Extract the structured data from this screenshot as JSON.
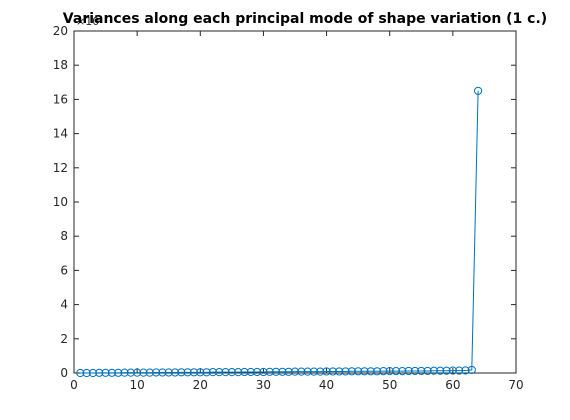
{
  "chart_data": {
    "type": "line",
    "title": "Variances along each principal mode of shape variation (1 c.)",
    "xlabel": "",
    "ylabel": "",
    "y_exponent_label": "×10",
    "xlim": [
      0,
      70
    ],
    "ylim": [
      0,
      20
    ],
    "xticks": [
      0,
      10,
      20,
      30,
      40,
      50,
      60,
      70
    ],
    "yticks": [
      0,
      2,
      4,
      6,
      8,
      10,
      12,
      14,
      16,
      18,
      20
    ],
    "grid": false,
    "colors": {
      "series": "#0072BD"
    },
    "series": [
      {
        "marker": "circle",
        "x": [
          1,
          2,
          3,
          4,
          5,
          6,
          7,
          8,
          9,
          10,
          11,
          12,
          13,
          14,
          15,
          16,
          17,
          18,
          19,
          20,
          21,
          22,
          23,
          24,
          25,
          26,
          27,
          28,
          29,
          30,
          31,
          32,
          33,
          34,
          35,
          36,
          37,
          38,
          39,
          40,
          41,
          42,
          43,
          44,
          45,
          46,
          47,
          48,
          49,
          50,
          51,
          52,
          53,
          54,
          55,
          56,
          57,
          58,
          59,
          60,
          61,
          62,
          63,
          64
        ],
        "values": [
          0,
          0,
          0,
          0.01,
          0.01,
          0.01,
          0.01,
          0.02,
          0.02,
          0.02,
          0.02,
          0.02,
          0.03,
          0.03,
          0.03,
          0.03,
          0.04,
          0.04,
          0.04,
          0.04,
          0.04,
          0.05,
          0.05,
          0.05,
          0.05,
          0.05,
          0.06,
          0.06,
          0.06,
          0.06,
          0.07,
          0.07,
          0.07,
          0.07,
          0.08,
          0.08,
          0.08,
          0.08,
          0.08,
          0.09,
          0.09,
          0.09,
          0.09,
          0.1,
          0.1,
          0.1,
          0.1,
          0.1,
          0.11,
          0.11,
          0.11,
          0.11,
          0.12,
          0.12,
          0.12,
          0.12,
          0.13,
          0.13,
          0.13,
          0.14,
          0.14,
          0.15,
          0.18,
          16.5
        ]
      }
    ]
  }
}
